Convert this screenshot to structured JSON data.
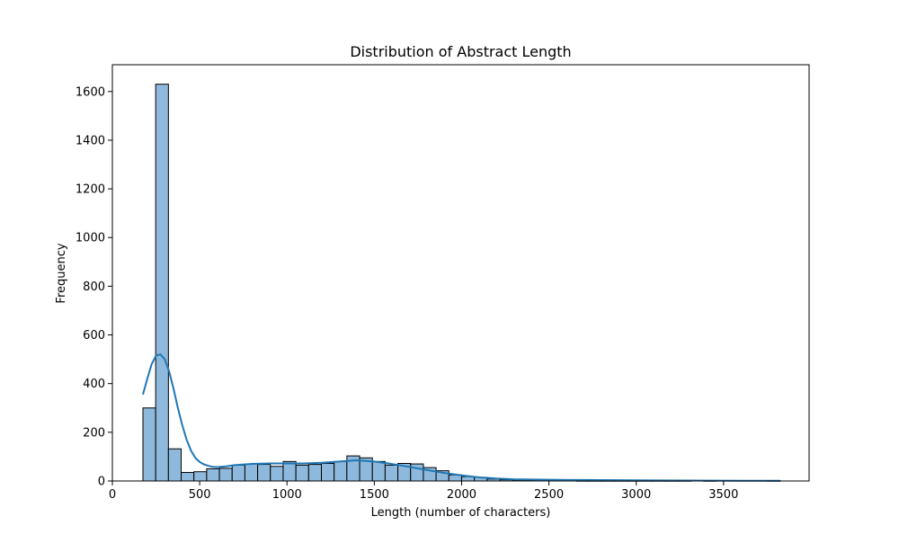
{
  "chart_data": {
    "type": "bar",
    "subtype": "histogram-with-kde",
    "title": "Distribution of Abstract Length",
    "xlabel": "Length (number of characters)",
    "ylabel": "Frequency",
    "xlim": [
      0,
      3990
    ],
    "ylim": [
      0,
      1710
    ],
    "xticks": [
      0,
      500,
      1000,
      1500,
      2000,
      2500,
      3000,
      3500
    ],
    "yticks": [
      0,
      200,
      400,
      600,
      800,
      1000,
      1200,
      1400,
      1600
    ],
    "grid": false,
    "legend": "none",
    "bins": {
      "edges": [
        175,
        248,
        321,
        394,
        467,
        540,
        613,
        686,
        759,
        832,
        905,
        978,
        1051,
        1124,
        1197,
        1270,
        1343,
        1416,
        1489,
        1562,
        1635,
        1708,
        1781,
        1854,
        1927,
        2000,
        2073,
        2146,
        2219,
        2292,
        2365,
        2438,
        2511,
        2584,
        2657,
        2730,
        2803,
        2876,
        2949,
        3022,
        3095,
        3168,
        3241,
        3314,
        3387,
        3460,
        3533,
        3606,
        3679,
        3752,
        3825
      ],
      "counts": [
        300,
        1630,
        132,
        35,
        38,
        50,
        52,
        65,
        70,
        68,
        60,
        80,
        65,
        68,
        72,
        80,
        103,
        95,
        80,
        65,
        72,
        70,
        55,
        42,
        25,
        18,
        15,
        8,
        5,
        4,
        3,
        2,
        2,
        2,
        1,
        1,
        1,
        1,
        1,
        1,
        1,
        1,
        1,
        0,
        1,
        0,
        0,
        0,
        0,
        1
      ]
    },
    "kde": {
      "x": [
        175,
        200,
        225,
        250,
        275,
        300,
        325,
        350,
        375,
        400,
        425,
        450,
        475,
        500,
        525,
        550,
        575,
        600,
        650,
        700,
        800,
        900,
        1000,
        1100,
        1200,
        1300,
        1400,
        1500,
        1600,
        1700,
        1800,
        1900,
        2000,
        2100,
        2200,
        2300,
        2500,
        2700,
        3000,
        3300,
        3600,
        3825
      ],
      "y": [
        355,
        420,
        480,
        515,
        520,
        500,
        450,
        380,
        300,
        230,
        170,
        125,
        95,
        78,
        68,
        62,
        58,
        57,
        60,
        65,
        70,
        72,
        72,
        72,
        75,
        80,
        85,
        80,
        70,
        58,
        45,
        33,
        23,
        15,
        10,
        7,
        5,
        4,
        3,
        2,
        1,
        1
      ]
    },
    "colors": {
      "bar_fill": "#8fb9dc",
      "bar_edge": "#000000",
      "kde_line": "#1f77b4"
    }
  }
}
